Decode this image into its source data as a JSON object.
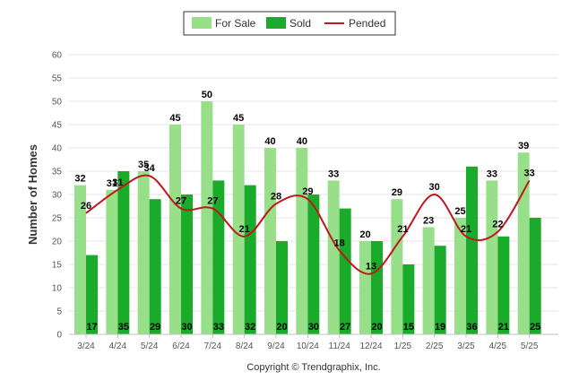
{
  "chart_data": {
    "type": "bar",
    "title": "",
    "xlabel": "",
    "ylabel": "Number of Homes",
    "ylim": [
      0,
      60
    ],
    "yticks": [
      0,
      5,
      10,
      15,
      20,
      25,
      30,
      35,
      40,
      45,
      50,
      55,
      60
    ],
    "grid": true,
    "legend_position": "top-center",
    "categories": [
      "3/24",
      "4/24",
      "5/24",
      "6/24",
      "7/24",
      "8/24",
      "9/24",
      "10/24",
      "11/24",
      "12/24",
      "1/25",
      "2/25",
      "3/25",
      "4/25",
      "5/25"
    ],
    "series": [
      {
        "name": "For Sale",
        "kind": "bar",
        "color": "#98df8a",
        "values": [
          32,
          31,
          35,
          45,
          50,
          45,
          40,
          40,
          33,
          20,
          29,
          23,
          25,
          33,
          39
        ]
      },
      {
        "name": "Sold",
        "kind": "bar",
        "color": "#1aab2a",
        "values": [
          17,
          35,
          29,
          30,
          33,
          32,
          20,
          30,
          27,
          20,
          15,
          19,
          36,
          21,
          25
        ]
      },
      {
        "name": "Pended",
        "kind": "line",
        "color": "#c0161c",
        "values": [
          26,
          31,
          34,
          27,
          27,
          21,
          28,
          29,
          18,
          13,
          21,
          30,
          21,
          22,
          33
        ]
      }
    ],
    "footer": "Copyright © Trendgraphix, Inc."
  }
}
